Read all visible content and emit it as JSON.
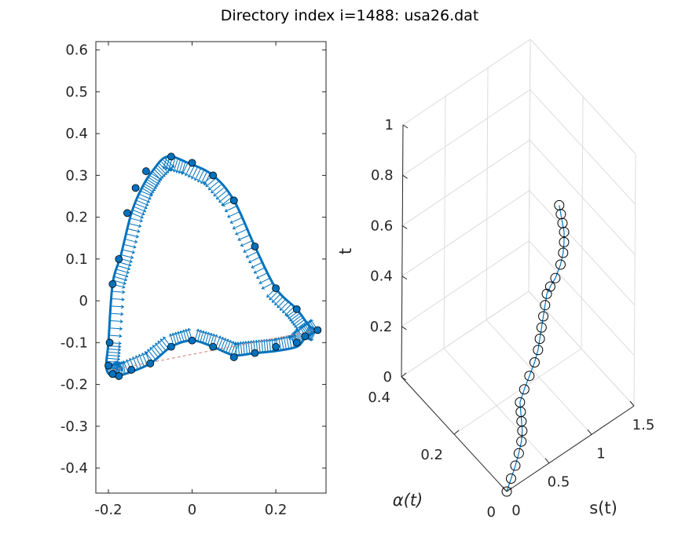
{
  "title": "Directory index i=1488: usa26.dat",
  "colors": {
    "curve": "#0072BD",
    "marker_edge": "#000000",
    "axes": "#262626",
    "grid": "#dcdcdc",
    "chord": "#d08080"
  },
  "chart_data": [
    {
      "type": "line",
      "subplot": "left",
      "description_free": true,
      "xlim": [
        -0.23,
        0.32
      ],
      "ylim": [
        -0.46,
        0.62
      ],
      "x_ticks": [
        -0.2,
        0,
        0.2
      ],
      "x_tick_labels": [
        "-0.2",
        "0",
        "0.2"
      ],
      "y_ticks": [
        0.6,
        0.5,
        0.4,
        0.3,
        0.2,
        0.1,
        0,
        -0.1,
        -0.2,
        -0.3,
        -0.4
      ],
      "y_tick_labels": [
        "0.6",
        "0.5",
        "0.4",
        "0.3",
        "0.2",
        "0.1",
        "0",
        "-0.1",
        "-0.2",
        "-0.3",
        "-0.4"
      ],
      "grid": false,
      "series": [
        {
          "x": [
            0.3,
            0.27,
            0.25,
            0.2,
            0.15,
            0.1,
            0.05,
            0.0,
            -0.05,
            -0.1,
            -0.16,
            -0.19,
            -0.205,
            -0.2,
            -0.19,
            -0.17,
            -0.145,
            -0.12,
            -0.095,
            -0.06,
            -0.01,
            0.05,
            0.1,
            0.15,
            0.2,
            0.25,
            0.28,
            0.3
          ],
          "y": [
            -0.07,
            -0.09,
            -0.11,
            -0.12,
            -0.125,
            -0.13,
            -0.11,
            -0.095,
            -0.11,
            -0.15,
            -0.175,
            -0.18,
            -0.16,
            -0.1,
            0.04,
            0.11,
            0.21,
            0.27,
            0.31,
            0.345,
            0.33,
            0.3,
            0.24,
            0.13,
            0.03,
            -0.02,
            -0.06,
            -0.07
          ]
        }
      ],
      "markers": {
        "x": [
          0.3,
          0.27,
          0.25,
          0.2,
          0.15,
          0.1,
          0.05,
          0.0,
          -0.05,
          -0.1,
          -0.145,
          -0.175,
          -0.19,
          -0.2,
          -0.197,
          -0.19,
          -0.175,
          -0.155,
          -0.135,
          -0.11,
          -0.05,
          0.0,
          0.05,
          0.1,
          0.15,
          0.2,
          0.25
        ],
        "y": [
          -0.07,
          -0.085,
          -0.1,
          -0.11,
          -0.125,
          -0.135,
          -0.11,
          -0.095,
          -0.11,
          -0.15,
          -0.165,
          -0.18,
          -0.175,
          -0.155,
          -0.1,
          0.04,
          0.1,
          0.21,
          0.27,
          0.31,
          0.345,
          0.33,
          0.3,
          0.24,
          0.13,
          0.03,
          -0.02
        ]
      },
      "chord": {
        "x": [
          -0.19,
          0.3
        ],
        "y": [
          -0.165,
          -0.07
        ]
      }
    },
    {
      "type": "line",
      "subplot": "right",
      "projection": "3d",
      "xlabel": "s(t)",
      "ylabel": "α(t)",
      "zlabel": "t",
      "xlim": [
        0,
        1.5
      ],
      "ylim": [
        0,
        0.4
      ],
      "zlim": [
        0,
        1
      ],
      "x_ticks": [
        0,
        0.5,
        1,
        1.5
      ],
      "x_tick_labels": [
        "0",
        "0.5",
        "1",
        "1.5"
      ],
      "y_ticks": [
        0,
        0.2,
        0.4
      ],
      "y_tick_labels": [
        "0",
        "0.2",
        "0.4"
      ],
      "z_ticks": [
        0,
        0.2,
        0.4,
        0.6,
        0.8,
        1
      ],
      "z_tick_labels": [
        "0",
        "0.2",
        "0.4",
        "0.6",
        "0.8",
        "1"
      ],
      "grid": true,
      "series": [
        {
          "s": [
            0.0,
            0.05,
            0.1,
            0.14,
            0.17,
            0.18,
            0.17,
            0.16,
            0.15,
            0.2,
            0.26,
            0.32,
            0.36,
            0.38,
            0.4,
            0.42,
            0.44,
            0.46,
            0.5,
            0.56,
            0.62,
            0.65,
            0.66,
            0.66,
            0.64,
            0.62,
            0.6
          ],
          "alpha": [
            0.0,
            0.0,
            0.0,
            0.0,
            0.0,
            0.0,
            0.0,
            0.0,
            0.0,
            0.0,
            0.0,
            0.0,
            0.0,
            0.0,
            0.0,
            0.0,
            0.0,
            0.0,
            0.0,
            0.0,
            0.0,
            0.0,
            0.0,
            0.0,
            0.0,
            0.0,
            0.0
          ],
          "t": [
            0.0,
            0.04,
            0.08,
            0.12,
            0.16,
            0.2,
            0.24,
            0.28,
            0.32,
            0.36,
            0.4,
            0.44,
            0.48,
            0.52,
            0.56,
            0.6,
            0.64,
            0.68,
            0.7,
            0.72,
            0.76,
            0.8,
            0.84,
            0.88,
            0.92,
            0.96,
            1.0
          ]
        }
      ]
    }
  ]
}
